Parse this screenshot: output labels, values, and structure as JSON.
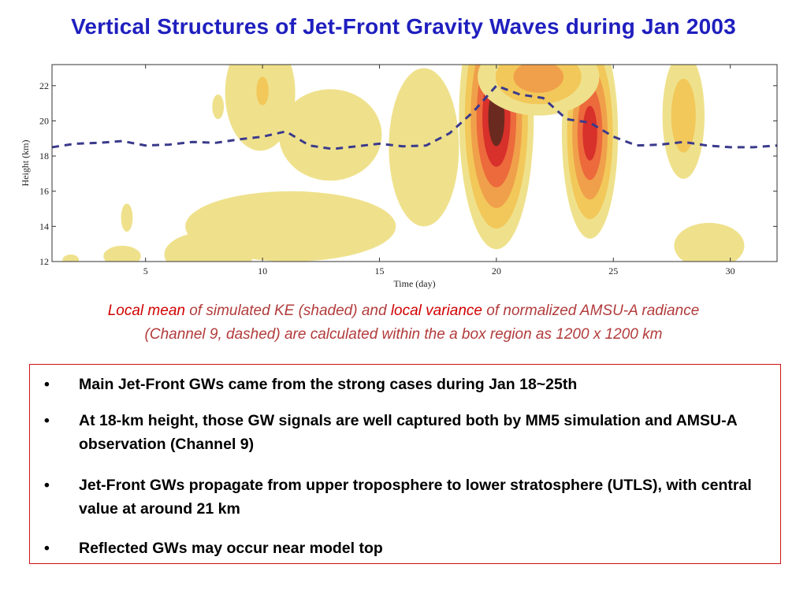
{
  "title": "Vertical Structures of Jet-Front Gravity Waves during Jan 2003",
  "caption": {
    "part1": "Local mean",
    "part2": " of simulated KE (shaded) and ",
    "part3": "local variance",
    "part4": " of normalized AMSU-A radiance",
    "line2": "(Channel 9, dashed) are calculated within the a box region as 1200 x 1200 km"
  },
  "bullets": [
    {
      "marker": "•",
      "text": "Main Jet-Front GWs came from the strong cases during Jan 18~25th"
    },
    {
      "marker": "•",
      "text": "At 18-km height, those GW signals are well captured both by MM5 simulation and AMSU-A observation (Channel 9)"
    },
    {
      "marker": "•",
      "text": "Jet-Front GWs propagate from upper troposphere to lower stratosphere (UTLS), with central value at around 21 km"
    },
    {
      "marker": "•",
      "text": "Reflected GWs may occur near model top"
    }
  ],
  "chart_data": {
    "type": "heatmap",
    "xlabel": "Time (day)",
    "ylabel": "Height (km)",
    "xlim": [
      1,
      32
    ],
    "ylim": [
      12,
      23.2
    ],
    "xticks": [
      5,
      10,
      15,
      20,
      25,
      30
    ],
    "yticks": [
      12,
      14,
      16,
      18,
      20,
      22
    ],
    "colors": [
      "#efe18c",
      "#f2c85a",
      "#f0a04a",
      "#ec6a3c",
      "#d8302a",
      "#6b2a20"
    ],
    "dashed_color": "#3a3a8c",
    "dashed_series": {
      "x": [
        1,
        2,
        3,
        4,
        5,
        6,
        7,
        8,
        9,
        10,
        11,
        12,
        13,
        14,
        15,
        16,
        17,
        18,
        19,
        20,
        21,
        22,
        23,
        24,
        25,
        26,
        27,
        28,
        29,
        30,
        31,
        32
      ],
      "y": [
        18.5,
        18.7,
        18.75,
        18.85,
        18.6,
        18.65,
        18.8,
        18.75,
        18.95,
        19.1,
        19.4,
        18.6,
        18.4,
        18.55,
        18.7,
        18.55,
        18.6,
        19.3,
        20.5,
        22.0,
        21.5,
        21.3,
        20.1,
        19.9,
        19.1,
        18.6,
        18.65,
        18.8,
        18.6,
        18.5,
        18.5,
        18.6
      ]
    },
    "shaded_features": [
      {
        "cx": 20.0,
        "cy": 20.2,
        "rx": 1.6,
        "ry": 7.5,
        "peak": 5
      },
      {
        "cx": 24.0,
        "cy": 19.3,
        "rx": 1.2,
        "ry": 6.0,
        "peak": 4
      },
      {
        "cx": 21.8,
        "cy": 22.5,
        "rx": 2.6,
        "ry": 2.2,
        "peak": 2
      },
      {
        "cx": 12.9,
        "cy": 19.2,
        "rx": 2.2,
        "ry": 2.6,
        "peak": 0
      },
      {
        "cx": 16.9,
        "cy": 18.5,
        "rx": 1.5,
        "ry": 4.5,
        "peak": 0
      },
      {
        "cx": 11.2,
        "cy": 14.0,
        "rx": 4.5,
        "ry": 2.0,
        "peak": 0
      },
      {
        "cx": 9.9,
        "cy": 21.6,
        "rx": 1.5,
        "ry": 3.3,
        "peak": 0
      },
      {
        "cx": 10.0,
        "cy": 21.7,
        "rx": 0.45,
        "ry": 1.4,
        "peak": 1
      },
      {
        "cx": 28.0,
        "cy": 20.3,
        "rx": 0.9,
        "ry": 3.6,
        "peak": 1
      },
      {
        "cx": 29.1,
        "cy": 12.9,
        "rx": 1.5,
        "ry": 1.3,
        "peak": 0
      },
      {
        "cx": 7.7,
        "cy": 12.4,
        "rx": 1.9,
        "ry": 1.3,
        "peak": 0
      },
      {
        "cx": 4.0,
        "cy": 12.3,
        "rx": 0.8,
        "ry": 0.6,
        "peak": 0
      },
      {
        "cx": 4.2,
        "cy": 14.5,
        "rx": 0.25,
        "ry": 0.8,
        "peak": 0
      },
      {
        "cx": 8.1,
        "cy": 20.8,
        "rx": 0.25,
        "ry": 0.7,
        "peak": 0
      },
      {
        "cx": 1.8,
        "cy": 12.1,
        "rx": 0.35,
        "ry": 0.3,
        "peak": 0
      }
    ]
  }
}
